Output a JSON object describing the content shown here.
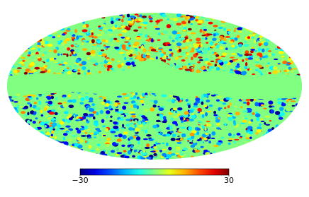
{
  "chart_data": {
    "type": "mollweide",
    "colormap": "jet",
    "clim": [
      -30,
      30
    ],
    "cticks": [
      {
        "value": -30,
        "label": "−30"
      },
      30
    ]
  }
}
